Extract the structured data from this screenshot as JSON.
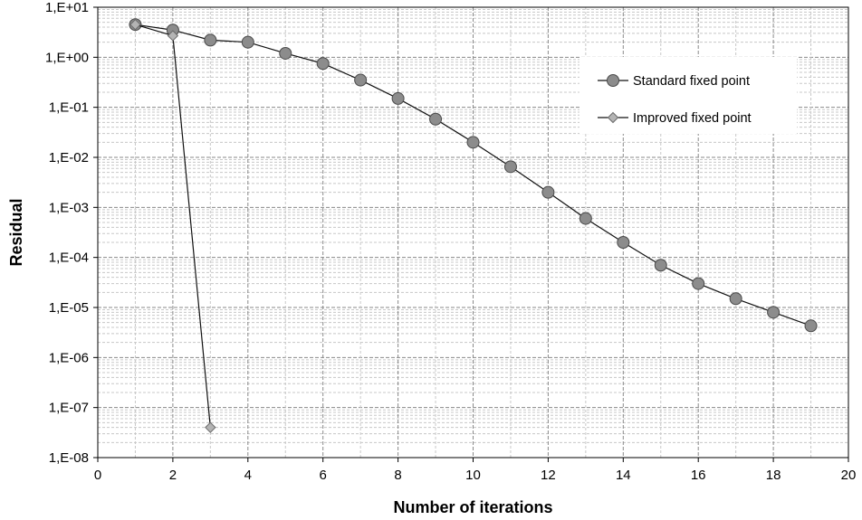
{
  "chart_data": {
    "type": "line",
    "title": "",
    "xlabel": "Number of iterations",
    "ylabel": "Residual",
    "xlim": [
      0,
      20
    ],
    "ylim": [
      1e-08,
      10
    ],
    "y_scale": "log",
    "x_ticks": [
      "0",
      "2",
      "4",
      "6",
      "8",
      "10",
      "12",
      "14",
      "16",
      "18",
      "20"
    ],
    "y_ticks": [
      "1,E-08",
      "1,E-07",
      "1,E-06",
      "1,E-05",
      "1,E-04",
      "1,E-03",
      "1,E-02",
      "1,E-01",
      "1,E+00",
      "1,E+01"
    ],
    "grid": true,
    "legend_position": "top-right",
    "series": [
      {
        "name": "Standard fixed point",
        "marker": "circle",
        "color": "#8c8c8c",
        "x": [
          1,
          2,
          3,
          4,
          5,
          6,
          7,
          8,
          9,
          10,
          11,
          12,
          13,
          14,
          15,
          16,
          17,
          18,
          19
        ],
        "y": [
          4.5,
          3.5,
          2.2,
          2.0,
          1.2,
          0.75,
          0.35,
          0.15,
          0.058,
          0.02,
          0.0065,
          0.002,
          0.0006,
          0.0002,
          7e-05,
          3e-05,
          1.5e-05,
          8e-06,
          4.3e-06
        ]
      },
      {
        "name": "Improved fixed point",
        "marker": "diamond",
        "color": "#b4b4b4",
        "x": [
          1,
          2,
          3
        ],
        "y": [
          4.5,
          2.7,
          4e-08
        ]
      }
    ]
  }
}
